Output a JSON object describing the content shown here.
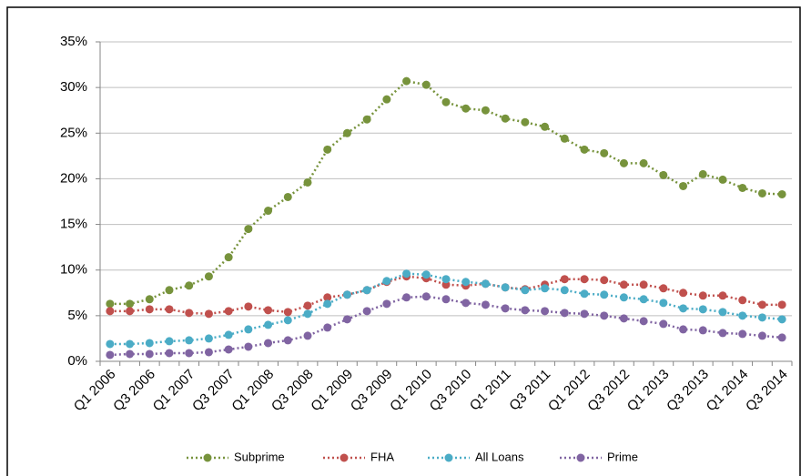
{
  "chart_data": {
    "type": "line",
    "categories": [
      "Q1 2006",
      null,
      "Q3 2006",
      null,
      "Q1 2007",
      null,
      "Q3 2007",
      null,
      "Q1 2008",
      null,
      "Q3 2008",
      null,
      "Q1 2009",
      null,
      "Q3 2009",
      null,
      "Q1 2010",
      null,
      "Q3 2010",
      null,
      "Q1 2011",
      null,
      "Q3 2011",
      null,
      "Q1 2012",
      null,
      "Q3 2012",
      null,
      "Q1 2013",
      null,
      "Q3 2013",
      null,
      "Q1 2014",
      null,
      "Q3 2014"
    ],
    "series": [
      {
        "name": "Subprime",
        "color": "#77933c",
        "values": [
          6.3,
          6.3,
          6.8,
          7.8,
          8.3,
          9.3,
          11.4,
          14.5,
          16.5,
          18,
          19.6,
          23.2,
          25,
          26.5,
          28.7,
          30.7,
          30.3,
          28.4,
          27.7,
          27.5,
          26.6,
          26.2,
          25.7,
          24.4,
          23.2,
          22.8,
          21.7,
          21.7,
          20.4,
          19.2,
          20.5,
          19.9,
          19,
          18.4,
          18.3
        ]
      },
      {
        "name": "FHA",
        "color": "#c0504d",
        "values": [
          5.5,
          5.5,
          5.7,
          5.7,
          5.3,
          5.2,
          5.5,
          6.0,
          5.6,
          5.4,
          6.1,
          7.0,
          7.3,
          7.8,
          8.7,
          9.3,
          9.1,
          8.4,
          8.3,
          8.5,
          8.1,
          7.9,
          8.4,
          9.0,
          9.0,
          8.9,
          8.4,
          8.4,
          8.0,
          7.5,
          7.2,
          7.2,
          6.7,
          6.2,
          6.2
        ]
      },
      {
        "name": "All Loans",
        "color": "#4bacc6",
        "values": [
          1.9,
          1.9,
          2.0,
          2.2,
          2.3,
          2.5,
          2.9,
          3.5,
          4.0,
          4.5,
          5.2,
          6.3,
          7.3,
          7.8,
          8.8,
          9.6,
          9.5,
          9.0,
          8.7,
          8.5,
          8.1,
          7.8,
          8.0,
          7.8,
          7.4,
          7.3,
          7.0,
          6.8,
          6.4,
          5.8,
          5.7,
          5.4,
          5.0,
          4.8,
          4.6
        ]
      },
      {
        "name": "Prime",
        "color": "#8064a2",
        "values": [
          0.7,
          0.8,
          0.8,
          0.9,
          0.9,
          1.0,
          1.3,
          1.6,
          2.0,
          2.3,
          2.8,
          3.7,
          4.6,
          5.5,
          6.3,
          7.0,
          7.1,
          6.8,
          6.4,
          6.2,
          5.8,
          5.6,
          5.5,
          5.3,
          5.2,
          5.0,
          4.7,
          4.4,
          4.1,
          3.5,
          3.4,
          3.1,
          3.0,
          2.8,
          2.6
        ]
      }
    ],
    "ylim": [
      0,
      35
    ],
    "yticks": [
      {
        "value": 0,
        "label": "0%"
      },
      {
        "value": 5,
        "label": "5%"
      },
      {
        "value": 10,
        "label": "10%"
      },
      {
        "value": 15,
        "label": "15%"
      },
      {
        "value": 20,
        "label": "20%"
      },
      {
        "value": 25,
        "label": "25%"
      },
      {
        "value": 30,
        "label": "30%"
      },
      {
        "value": 35,
        "label": "35%"
      }
    ],
    "grid": true,
    "legend": "bottom"
  }
}
